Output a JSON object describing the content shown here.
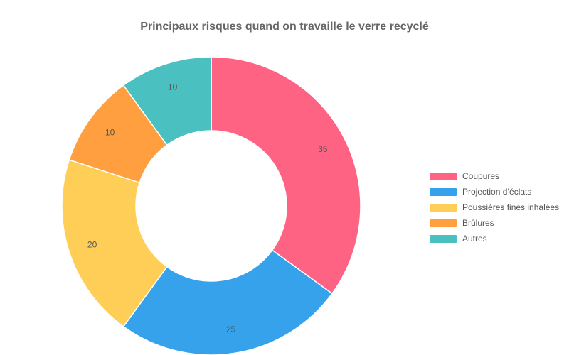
{
  "chart_data": {
    "type": "pie",
    "variant": "doughnut",
    "title": "Principaux risques quand on travaille le verre recyclé",
    "categories": [
      "Coupures",
      "Projection d’éclats",
      "Poussières fines inhalées",
      "Brûlures",
      "Autres"
    ],
    "values": [
      35,
      25,
      20,
      10,
      10
    ],
    "colors": [
      "#ff6384",
      "#36a2eb",
      "#ffce56",
      "#ff9f40",
      "#4bc0c0"
    ],
    "data_labels": true,
    "legend_position": "right"
  }
}
